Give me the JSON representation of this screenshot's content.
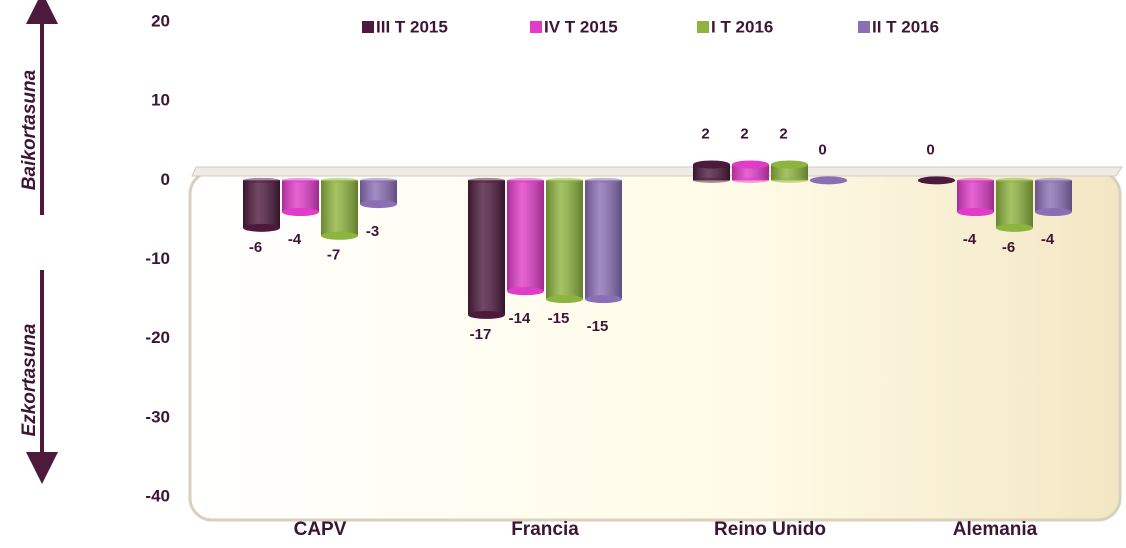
{
  "chart_data": {
    "type": "bar",
    "annotations": [
      "Baikortasuna",
      "Ezkortasuna"
    ],
    "categories": [
      "CAPV",
      "Francia",
      "Reino Unido",
      "Alemania"
    ],
    "series": [
      {
        "name": "III T 2015",
        "color": "#4d1a3d",
        "values": [
          -6,
          -17,
          2,
          0
        ]
      },
      {
        "name": "IV T 2015",
        "color": "#e03cc8",
        "values": [
          -4,
          -14,
          2,
          -4
        ]
      },
      {
        "name": "I T 2016",
        "color": "#8db43e",
        "values": [
          -7,
          -15,
          2,
          -6
        ]
      },
      {
        "name": "II T 2016",
        "color": "#8a6fb5",
        "values": [
          -3,
          -15,
          0,
          -4
        ]
      }
    ],
    "ylim": [
      -40,
      20
    ],
    "yticks": [
      -40,
      -30,
      -20,
      -10,
      0,
      10,
      20
    ]
  }
}
